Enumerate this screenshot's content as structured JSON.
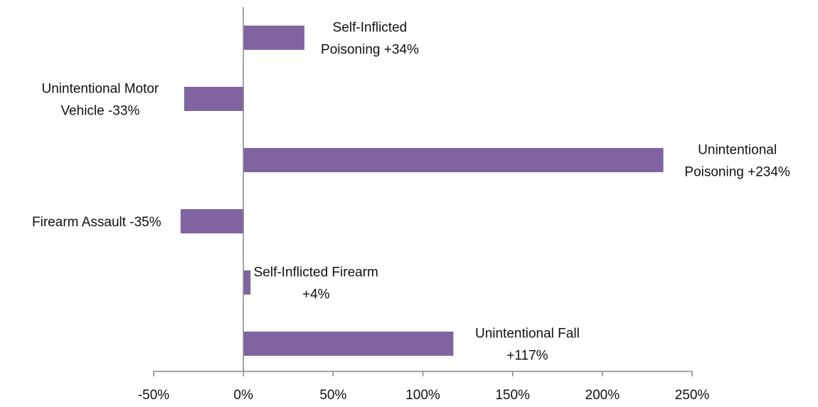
{
  "chart_data": {
    "type": "bar",
    "orientation": "horizontal",
    "title": "",
    "xlabel": "",
    "ylabel": "",
    "xlim": [
      -0.5,
      2.5
    ],
    "x_ticks": [
      -0.5,
      0,
      0.5,
      1.0,
      1.5,
      2.0,
      2.5
    ],
    "x_tick_labels": [
      "-50%",
      "0%",
      "50%",
      "100%",
      "150%",
      "200%",
      "250%"
    ],
    "grid": false,
    "legend": "none",
    "bar_color": "#8064a2",
    "axis_color": "#868686",
    "categories": [
      "Self-Inflicted Poisoning",
      "Unintentional Motor Vehicle",
      "Unintentional Poisoning",
      "Firearm Assault",
      "Self-Inflicted Firearm",
      "Unintentional Fall"
    ],
    "values": [
      0.34,
      -0.33,
      2.34,
      -0.35,
      0.04,
      1.17
    ],
    "data_labels": [
      [
        "Self-Inflicted",
        "Poisoning +34%"
      ],
      [
        "Unintentional Motor",
        "Vehicle -33%"
      ],
      [
        "Unintentional",
        "Poisoning +234%"
      ],
      [
        "Firearm Assault -35%"
      ],
      [
        "Self-Inflicted Firearm",
        "+4%"
      ],
      [
        "Unintentional Fall",
        "+117%"
      ]
    ]
  }
}
